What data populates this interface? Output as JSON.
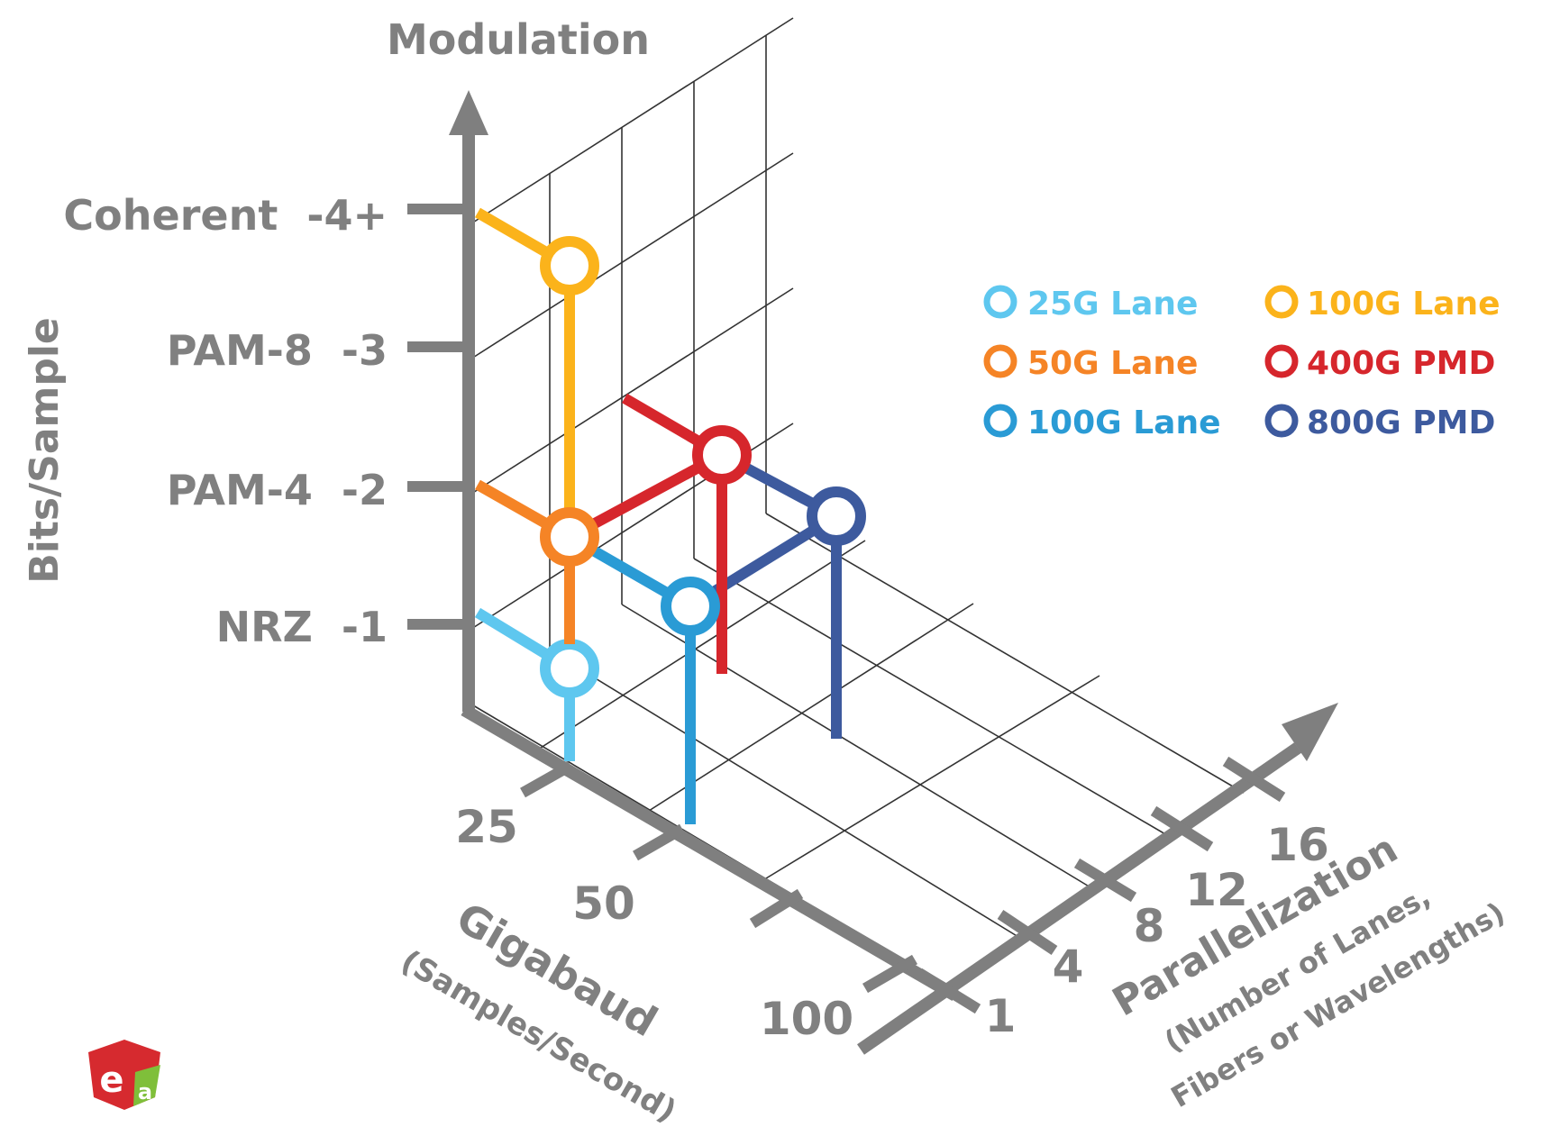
{
  "vertical_axis": {
    "title": "Modulation",
    "side_label": "Bits/Sample",
    "ticks": [
      "NRZ  -1",
      "PAM-4  -2",
      "PAM-8  -3",
      "Coherent  -4+"
    ]
  },
  "gigabaud_axis": {
    "title": "Gigabaud",
    "subtitle": "(Samples/Second)",
    "ticks": [
      "25",
      "50",
      "100"
    ]
  },
  "parallel_axis": {
    "title": "Parallelization",
    "subtitle_line1": "(Number of Lanes,",
    "subtitle_line2": "Fibers or Wavelengths)",
    "ticks": [
      "1",
      "4",
      "8",
      "12",
      "16"
    ]
  },
  "legend": [
    {
      "label": "25G Lane",
      "color": "#5ec7ef"
    },
    {
      "label": "100G Lane",
      "color": "#fbb31b"
    },
    {
      "label": "50G Lane",
      "color": "#f58426"
    },
    {
      "label": "400G PMD",
      "color": "#d6262c"
    },
    {
      "label": "100G Lane",
      "color": "#2a9bd5"
    },
    {
      "label": "800G PMD",
      "color": "#3d5a9e"
    }
  ],
  "logo": {
    "text": "ea",
    "colors": [
      "#d62a2f",
      "#7fbf3a"
    ]
  },
  "colors": {
    "axis": "#7f7f7f",
    "grid": "#222222"
  }
}
